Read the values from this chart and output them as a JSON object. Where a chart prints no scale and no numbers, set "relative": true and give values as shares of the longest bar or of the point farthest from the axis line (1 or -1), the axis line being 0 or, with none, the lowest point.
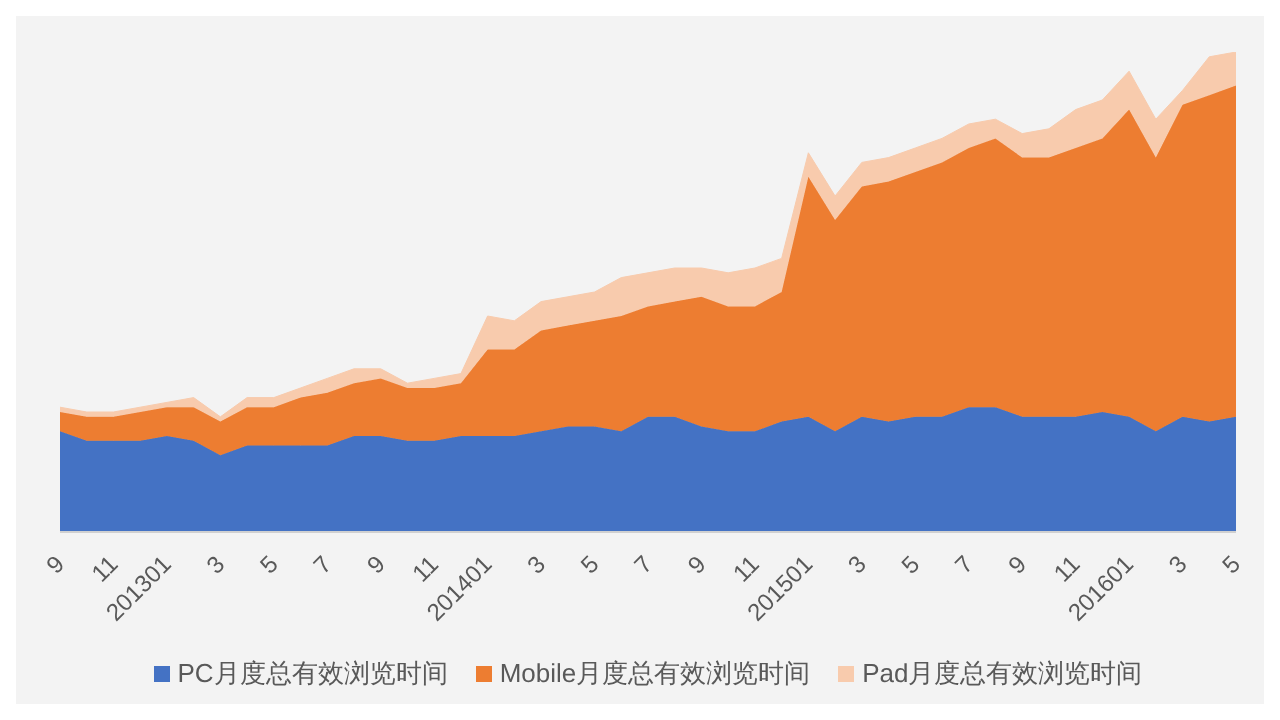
{
  "chart_data": {
    "type": "area",
    "stacked": true,
    "relative": true,
    "legend": "bottom",
    "grid": false,
    "categories": [
      "9",
      null,
      "11",
      null,
      "201301",
      null,
      "3",
      null,
      "5",
      null,
      "7",
      null,
      "9",
      null,
      "11",
      null,
      "201401",
      null,
      "3",
      null,
      "5",
      null,
      "7",
      null,
      "9",
      null,
      "11",
      null,
      "201501",
      null,
      "3",
      null,
      "5",
      null,
      "7",
      null,
      "9",
      null,
      "11",
      null,
      "201601",
      null,
      "3",
      null,
      "5"
    ],
    "series": [
      {
        "name": "PC月度总有效浏览时间",
        "color": "#4472c4",
        "values": [
          0.21,
          0.19,
          0.19,
          0.19,
          0.2,
          0.19,
          0.16,
          0.18,
          0.18,
          0.18,
          0.18,
          0.2,
          0.2,
          0.19,
          0.19,
          0.2,
          0.2,
          0.2,
          0.21,
          0.22,
          0.22,
          0.21,
          0.24,
          0.24,
          0.22,
          0.21,
          0.21,
          0.23,
          0.24,
          0.21,
          0.24,
          0.23,
          0.24,
          0.24,
          0.26,
          0.26,
          0.24,
          0.24,
          0.24,
          0.25,
          0.24,
          0.21,
          0.24,
          0.23,
          0.24
        ]
      },
      {
        "name": "Mobile月度总有效浏览时间",
        "color": "#ed7d31",
        "values": [
          0.04,
          0.05,
          0.05,
          0.06,
          0.06,
          0.07,
          0.07,
          0.08,
          0.08,
          0.1,
          0.11,
          0.11,
          0.12,
          0.11,
          0.11,
          0.11,
          0.18,
          0.18,
          0.21,
          0.21,
          0.22,
          0.24,
          0.23,
          0.24,
          0.27,
          0.26,
          0.26,
          0.27,
          0.5,
          0.44,
          0.48,
          0.5,
          0.51,
          0.53,
          0.54,
          0.56,
          0.54,
          0.54,
          0.56,
          0.57,
          0.64,
          0.57,
          0.65,
          0.68,
          0.69
        ]
      },
      {
        "name": "Pad月度总有效浏览时间",
        "color": "#f8cbad",
        "values": [
          0.01,
          0.01,
          0.01,
          0.01,
          0.01,
          0.02,
          0.01,
          0.02,
          0.02,
          0.02,
          0.03,
          0.03,
          0.02,
          0.01,
          0.02,
          0.02,
          0.07,
          0.06,
          0.06,
          0.06,
          0.06,
          0.08,
          0.07,
          0.07,
          0.06,
          0.07,
          0.08,
          0.07,
          0.05,
          0.05,
          0.05,
          0.05,
          0.05,
          0.05,
          0.05,
          0.04,
          0.05,
          0.06,
          0.08,
          0.08,
          0.08,
          0.08,
          0.03,
          0.08,
          0.07
        ]
      }
    ]
  }
}
